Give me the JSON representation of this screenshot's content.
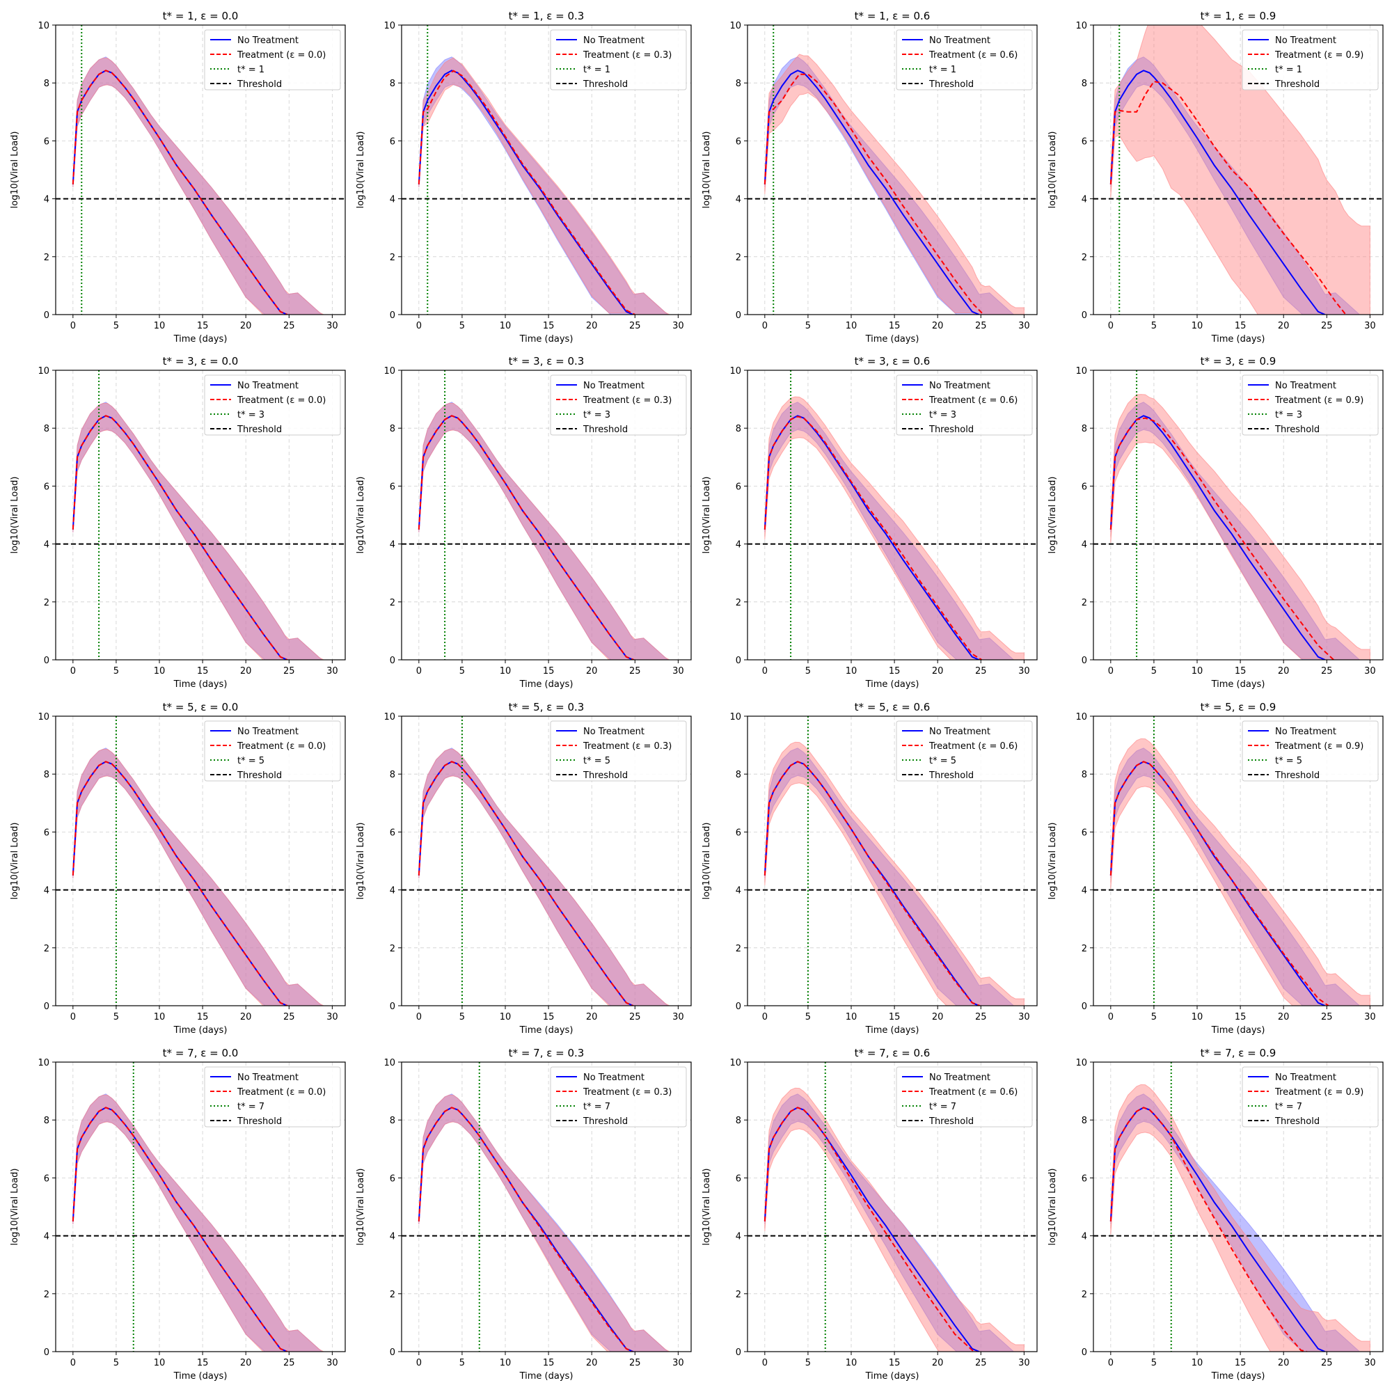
{
  "chart_data": {
    "type": "line",
    "layout": {
      "rows": 4,
      "cols": 4
    },
    "common": {
      "xlabel": "Time (days)",
      "ylabel": "log10(Viral Load)",
      "xlim": [
        -2,
        31.5
      ],
      "ylim": [
        0,
        10
      ],
      "xticks": [
        0,
        5,
        10,
        15,
        20,
        25,
        30
      ],
      "yticks": [
        0,
        2,
        4,
        6,
        8,
        10
      ],
      "grid": true,
      "legend_position": "top-right",
      "threshold": 4,
      "legend_labels": {
        "no_treatment": "No Treatment",
        "threshold": "Threshold"
      },
      "colors": {
        "no_treatment": "#0000ff",
        "no_treatment_band": "#8080ff",
        "treatment": "#ff0000",
        "treatment_band": "#ff8080",
        "tstar_line": "#008000",
        "threshold": "#000000",
        "grid": "#b0b0b0"
      },
      "no_treatment_curve": {
        "x": [
          0,
          0.5,
          1,
          2,
          3,
          3.8,
          4.5,
          5,
          6,
          7,
          8,
          9,
          10,
          12,
          14,
          16,
          18,
          20,
          22,
          24,
          24.8
        ],
        "y": [
          4.5,
          7.0,
          7.4,
          7.9,
          8.3,
          8.43,
          8.35,
          8.2,
          7.85,
          7.45,
          7.0,
          6.55,
          6.1,
          5.15,
          4.35,
          3.45,
          2.6,
          1.75,
          0.9,
          0.1,
          0
        ],
        "upper": [
          4.6,
          7.4,
          7.95,
          8.5,
          8.8,
          8.9,
          8.75,
          8.6,
          8.2,
          7.8,
          7.35,
          6.9,
          6.5,
          5.8,
          5.1,
          4.4,
          3.65,
          2.85,
          2.0,
          1.1,
          0.7
        ],
        "lower": [
          4.4,
          6.5,
          6.9,
          7.4,
          7.85,
          7.95,
          7.9,
          7.8,
          7.5,
          7.1,
          6.65,
          6.2,
          5.7,
          4.65,
          3.65,
          2.6,
          1.6,
          0.6,
          0,
          0,
          0
        ],
        "upper_tail": {
          "x": [
            26,
            28.8
          ],
          "y": [
            0.75,
            0
          ]
        },
        "lower_zero_x": 22.2
      }
    },
    "panels": [
      {
        "title": "t* = 1, ε = 0.0",
        "t_star": 1,
        "epsilon": 0.0,
        "legend_tstar": "t* = 1",
        "legend_treatment": "Treatment (ε = 0.0)",
        "treatment": {
          "x": [
            0,
            0.5,
            1,
            2,
            3,
            3.8,
            4.5,
            5,
            6,
            7,
            8,
            9,
            10,
            12,
            14,
            16,
            18,
            20,
            22,
            24,
            24.8
          ],
          "y": [
            4.5,
            7.0,
            7.4,
            7.9,
            8.3,
            8.43,
            8.35,
            8.2,
            7.85,
            7.45,
            7.0,
            6.55,
            6.1,
            5.15,
            4.35,
            3.45,
            2.6,
            1.75,
            0.9,
            0.1,
            0
          ]
        }
      },
      {
        "title": "t* = 1, ε = 0.3",
        "t_star": 1,
        "epsilon": 0.3,
        "legend_tstar": "t* = 1",
        "legend_treatment": "Treatment (ε = 0.3)",
        "treatment": {
          "x": [
            0,
            0.5,
            1,
            2,
            3,
            4,
            5,
            6,
            8,
            10,
            12,
            14,
            16,
            18,
            20,
            22,
            24,
            25
          ],
          "y": [
            4.5,
            7.0,
            7.1,
            7.7,
            8.2,
            8.42,
            8.25,
            7.9,
            7.1,
            6.15,
            5.2,
            4.4,
            3.5,
            2.65,
            1.8,
            0.95,
            0.15,
            0
          ]
        }
      },
      {
        "title": "t* = 1, ε = 0.6",
        "t_star": 1,
        "epsilon": 0.6,
        "legend_tstar": "t* = 1",
        "legend_treatment": "Treatment (ε = 0.6)",
        "treatment": {
          "x": [
            0,
            0.5,
            1,
            2,
            3,
            4,
            5,
            6,
            8,
            10,
            12,
            14,
            16,
            18,
            20,
            22,
            24,
            25.3
          ],
          "y": [
            4.5,
            7.0,
            7.1,
            7.4,
            7.9,
            8.3,
            8.3,
            8.05,
            7.3,
            6.4,
            5.45,
            4.65,
            3.75,
            2.9,
            2.05,
            1.2,
            0.4,
            0
          ]
        }
      },
      {
        "title": "t* = 1, ε = 0.9",
        "t_star": 1,
        "epsilon": 0.9,
        "legend_tstar": "t* = 1",
        "legend_treatment": "Treatment (ε = 0.9)",
        "treatment": {
          "x": [
            0,
            0.5,
            1,
            2,
            3,
            4,
            5,
            6,
            8,
            10,
            12,
            14,
            16,
            18,
            20,
            22,
            24,
            26,
            27.2
          ],
          "y": [
            4.5,
            7.0,
            7.05,
            7.0,
            7.0,
            7.6,
            8.05,
            8.0,
            7.55,
            6.7,
            5.8,
            5.0,
            4.4,
            3.6,
            2.8,
            2.05,
            1.3,
            0.45,
            0
          ]
        }
      },
      {
        "title": "t* = 3, ε = 0.0",
        "t_star": 3,
        "epsilon": 0.0,
        "legend_tstar": "t* = 3",
        "legend_treatment": "Treatment (ε = 0.0)",
        "treatment": {
          "x": [
            0,
            0.5,
            1,
            2,
            3,
            3.8,
            4.5,
            5,
            6,
            7,
            8,
            9,
            10,
            12,
            14,
            16,
            18,
            20,
            22,
            24,
            24.8
          ],
          "y": [
            4.5,
            7.0,
            7.4,
            7.9,
            8.3,
            8.43,
            8.35,
            8.2,
            7.85,
            7.45,
            7.0,
            6.55,
            6.1,
            5.15,
            4.35,
            3.45,
            2.6,
            1.75,
            0.9,
            0.1,
            0
          ]
        }
      },
      {
        "title": "t* = 3, ε = 0.3",
        "t_star": 3,
        "epsilon": 0.3,
        "legend_tstar": "t* = 3",
        "legend_treatment": "Treatment (ε = 0.3)",
        "treatment": {
          "x": [
            0,
            0.5,
            1,
            2,
            3,
            3.8,
            4.5,
            5,
            6,
            7,
            8,
            9,
            10,
            12,
            14,
            16,
            18,
            20,
            22,
            24,
            24.9
          ],
          "y": [
            4.5,
            7.0,
            7.4,
            7.9,
            8.3,
            8.43,
            8.35,
            8.2,
            7.85,
            7.45,
            7.0,
            6.55,
            6.1,
            5.15,
            4.35,
            3.45,
            2.6,
            1.75,
            0.9,
            0.1,
            0
          ]
        }
      },
      {
        "title": "t* = 3, ε = 0.6",
        "t_star": 3,
        "epsilon": 0.6,
        "legend_tstar": "t* = 3",
        "legend_treatment": "Treatment (ε = 0.6)",
        "treatment": {
          "x": [
            0,
            0.5,
            1,
            2,
            3,
            3.8,
            4.5,
            5,
            6,
            7,
            8,
            9,
            10,
            12,
            14,
            16,
            18,
            20,
            22,
            24,
            25.1
          ],
          "y": [
            4.5,
            7.0,
            7.4,
            7.9,
            8.3,
            8.4,
            8.35,
            8.2,
            7.9,
            7.5,
            7.05,
            6.6,
            6.15,
            5.25,
            4.45,
            3.6,
            2.7,
            1.85,
            1.0,
            0.2,
            0
          ]
        }
      },
      {
        "title": "t* = 3, ε = 0.9",
        "t_star": 3,
        "epsilon": 0.9,
        "legend_tstar": "t* = 3",
        "legend_treatment": "Treatment (ε = 0.9)",
        "treatment": {
          "x": [
            0,
            0.5,
            1,
            2,
            3,
            4,
            5,
            6,
            8,
            10,
            12,
            14,
            16,
            18,
            20,
            22,
            24,
            25.8
          ],
          "y": [
            4.5,
            7.0,
            7.4,
            7.9,
            8.3,
            8.35,
            8.25,
            8.0,
            7.25,
            6.4,
            5.5,
            4.65,
            3.8,
            2.95,
            2.1,
            1.3,
            0.5,
            0
          ]
        }
      },
      {
        "title": "t* = 5, ε = 0.0",
        "t_star": 5,
        "epsilon": 0.0,
        "legend_tstar": "t* = 5",
        "legend_treatment": "Treatment (ε = 0.0)",
        "treatment": {
          "x": [
            0,
            0.5,
            1,
            2,
            3,
            3.8,
            4.5,
            5,
            6,
            7,
            8,
            9,
            10,
            12,
            14,
            16,
            18,
            20,
            22,
            24,
            24.8
          ],
          "y": [
            4.5,
            7.0,
            7.4,
            7.9,
            8.3,
            8.43,
            8.35,
            8.2,
            7.85,
            7.45,
            7.0,
            6.55,
            6.1,
            5.15,
            4.35,
            3.45,
            2.6,
            1.75,
            0.9,
            0.1,
            0
          ]
        }
      },
      {
        "title": "t* = 5, ε = 0.3",
        "t_star": 5,
        "epsilon": 0.3,
        "legend_tstar": "t* = 5",
        "legend_treatment": "Treatment (ε = 0.3)",
        "treatment": {
          "x": [
            0,
            0.5,
            1,
            2,
            3,
            3.8,
            4.5,
            5,
            6,
            7,
            8,
            9,
            10,
            12,
            14,
            16,
            18,
            20,
            22,
            24,
            24.8
          ],
          "y": [
            4.5,
            7.0,
            7.4,
            7.9,
            8.3,
            8.43,
            8.35,
            8.2,
            7.85,
            7.45,
            7.0,
            6.55,
            6.1,
            5.15,
            4.35,
            3.45,
            2.6,
            1.75,
            0.9,
            0.1,
            0
          ]
        }
      },
      {
        "title": "t* = 5, ε = 0.6",
        "t_star": 5,
        "epsilon": 0.6,
        "legend_tstar": "t* = 5",
        "legend_treatment": "Treatment (ε = 0.6)",
        "treatment": {
          "x": [
            0,
            0.5,
            1,
            2,
            3,
            3.8,
            4.5,
            5,
            6,
            7,
            8,
            9,
            10,
            12,
            14,
            16,
            18,
            20,
            22,
            24,
            24.9
          ],
          "y": [
            4.5,
            7.0,
            7.4,
            7.9,
            8.3,
            8.43,
            8.35,
            8.2,
            7.85,
            7.45,
            7.0,
            6.55,
            6.1,
            5.15,
            4.3,
            3.4,
            2.55,
            1.7,
            0.85,
            0.1,
            0
          ]
        }
      },
      {
        "title": "t* = 5, ε = 0.9",
        "t_star": 5,
        "epsilon": 0.9,
        "legend_tstar": "t* = 5",
        "legend_treatment": "Treatment (ε = 0.9)",
        "treatment": {
          "x": [
            0,
            0.5,
            1,
            2,
            3,
            3.8,
            4.5,
            5,
            6,
            7,
            8,
            9,
            10,
            12,
            14,
            16,
            18,
            20,
            22,
            24,
            25.2
          ],
          "y": [
            4.5,
            7.0,
            7.4,
            7.9,
            8.3,
            8.43,
            8.35,
            8.2,
            7.85,
            7.45,
            7.0,
            6.55,
            6.1,
            5.2,
            4.35,
            3.5,
            2.65,
            1.8,
            1.0,
            0.25,
            0
          ]
        }
      },
      {
        "title": "t* = 7, ε = 0.0",
        "t_star": 7,
        "epsilon": 0.0,
        "legend_tstar": "t* = 7",
        "legend_treatment": "Treatment (ε = 0.0)",
        "treatment": {
          "x": [
            0,
            0.5,
            1,
            2,
            3,
            3.8,
            4.5,
            5,
            6,
            7,
            8,
            9,
            10,
            12,
            14,
            16,
            18,
            20,
            22,
            24,
            24.8
          ],
          "y": [
            4.5,
            7.0,
            7.4,
            7.9,
            8.3,
            8.43,
            8.35,
            8.2,
            7.85,
            7.45,
            7.0,
            6.55,
            6.1,
            5.15,
            4.35,
            3.45,
            2.6,
            1.75,
            0.9,
            0.1,
            0
          ]
        }
      },
      {
        "title": "t* = 7, ε = 0.3",
        "t_star": 7,
        "epsilon": 0.3,
        "legend_tstar": "t* = 7",
        "legend_treatment": "Treatment (ε = 0.3)",
        "treatment": {
          "x": [
            0,
            0.5,
            1,
            2,
            3,
            3.8,
            4.5,
            5,
            6,
            7,
            8,
            9,
            10,
            12,
            14,
            16,
            18,
            20,
            22,
            24,
            24.7
          ],
          "y": [
            4.5,
            7.0,
            7.4,
            7.9,
            8.3,
            8.43,
            8.35,
            8.2,
            7.85,
            7.45,
            7.0,
            6.55,
            6.1,
            5.15,
            4.3,
            3.4,
            2.55,
            1.7,
            0.85,
            0.1,
            0
          ]
        }
      },
      {
        "title": "t* = 7, ε = 0.6",
        "t_star": 7,
        "epsilon": 0.6,
        "legend_tstar": "t* = 7",
        "legend_treatment": "Treatment (ε = 0.6)",
        "treatment": {
          "x": [
            0,
            0.5,
            1,
            2,
            3,
            3.8,
            4.5,
            5,
            6,
            7,
            8,
            9,
            10,
            12,
            14,
            16,
            18,
            20,
            22,
            24,
            24.5
          ],
          "y": [
            4.5,
            7.0,
            7.4,
            7.9,
            8.3,
            8.43,
            8.35,
            8.2,
            7.85,
            7.45,
            6.95,
            6.45,
            5.95,
            5.0,
            4.1,
            3.2,
            2.3,
            1.45,
            0.6,
            0.05,
            0
          ]
        }
      },
      {
        "title": "t* = 7, ε = 0.9",
        "t_star": 7,
        "epsilon": 0.9,
        "legend_tstar": "t* = 7",
        "legend_treatment": "Treatment (ε = 0.9)",
        "treatment": {
          "x": [
            0,
            0.5,
            1,
            2,
            3,
            3.8,
            4.5,
            5,
            6,
            7,
            8,
            9,
            10,
            12,
            14,
            16,
            18,
            20,
            22,
            22.7
          ],
          "y": [
            4.5,
            7.0,
            7.4,
            7.9,
            8.3,
            8.43,
            8.35,
            8.2,
            7.85,
            7.45,
            6.85,
            6.25,
            5.65,
            4.6,
            3.55,
            2.55,
            1.6,
            0.75,
            0.05,
            0
          ]
        }
      }
    ]
  }
}
